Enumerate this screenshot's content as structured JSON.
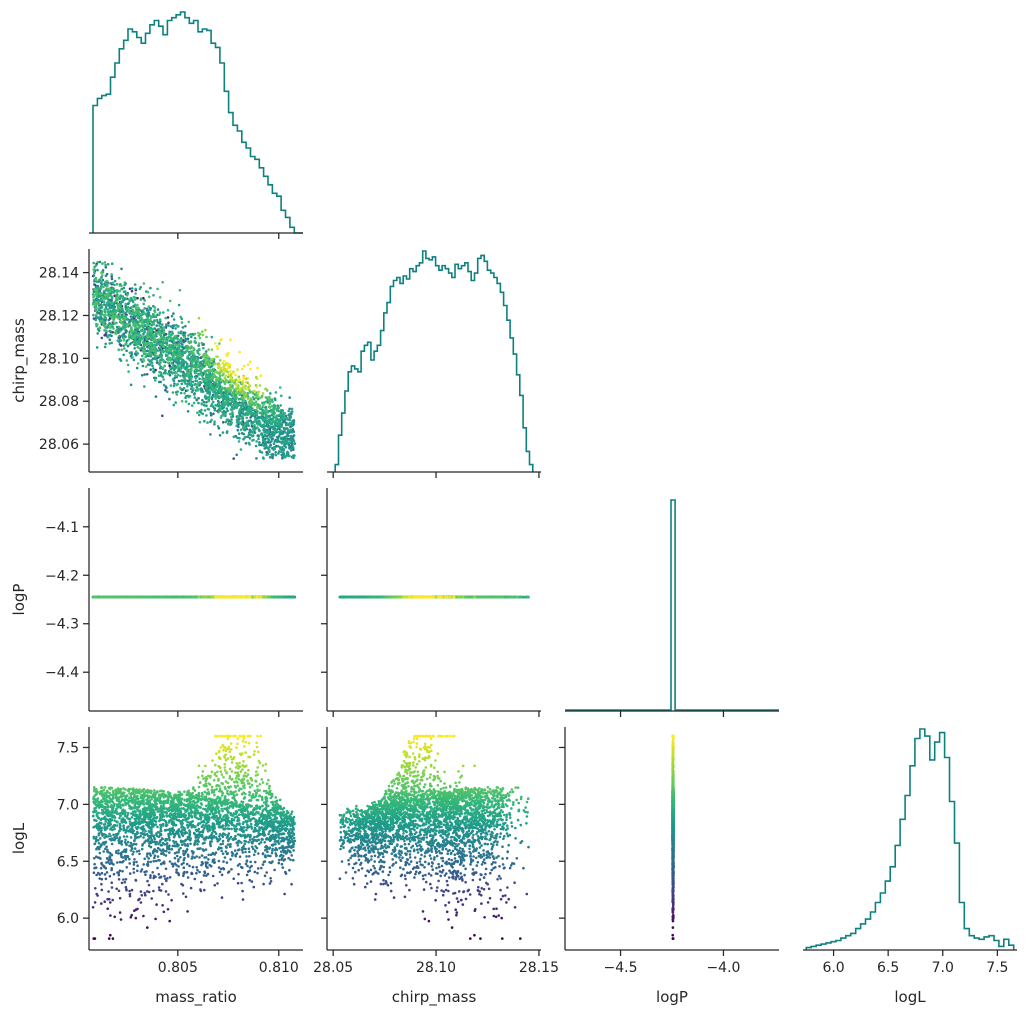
{
  "chart_data": {
    "type": "corner",
    "variables": [
      "mass_ratio",
      "chirp_mass",
      "logP",
      "logL"
    ],
    "axes": {
      "mass_ratio": {
        "label": "mass_ratio",
        "lim": [
          0.8006,
          0.8112
        ],
        "ticks": [
          0.805,
          0.81
        ],
        "tick_labels": [
          "0.805",
          "0.810"
        ]
      },
      "chirp_mass": {
        "label": "chirp_mass",
        "lim": [
          28.047,
          28.151
        ],
        "ticks": [
          28.05,
          28.1,
          28.15
        ],
        "tick_labels": [
          "28.05",
          "28.10",
          "28.15"
        ],
        "y_ticks": [
          28.06,
          28.08,
          28.1,
          28.12,
          28.14
        ],
        "y_tick_labels": [
          "28.06",
          "28.08",
          "28.10",
          "28.12",
          "28.14"
        ]
      },
      "logP": {
        "label": "logP",
        "lim": [
          -4.77,
          -3.73
        ],
        "ticks": [
          -4.5,
          -4.0
        ],
        "tick_labels": [
          "−4.5",
          "−4.0"
        ],
        "y_lim": [
          -4.48,
          -4.02
        ],
        "y_ticks": [
          -4.4,
          -4.3,
          -4.2,
          -4.1
        ],
        "y_tick_labels": [
          "−4.4",
          "−4.3",
          "−4.2",
          "−4.1"
        ]
      },
      "logL": {
        "label": "logL",
        "lim": [
          5.72,
          7.68
        ],
        "ticks": [
          6.0,
          6.5,
          7.0,
          7.5
        ],
        "tick_labels": [
          "6.0",
          "6.5",
          "7.0",
          "7.5"
        ],
        "y_ticks": [
          6.0,
          6.5,
          7.0,
          7.5
        ],
        "y_tick_labels": [
          "6.0",
          "6.5",
          "7.0",
          "7.5"
        ]
      }
    },
    "constant_logP": -4.245,
    "histograms": {
      "mass_ratio": {
        "edges": [
          0.8008,
          0.8112
        ],
        "counts": [
          90,
          95,
          97,
          98,
          110,
          120,
          130,
          136,
          144,
          142,
          138,
          134,
          141,
          147,
          150,
          146,
          140,
          150,
          152,
          154,
          156,
          152,
          148,
          150,
          142,
          144,
          143,
          134,
          131,
          120,
          100,
          85,
          76,
          72,
          64,
          60,
          54,
          52,
          46,
          40,
          34,
          28,
          26,
          16,
          11,
          4,
          0,
          0
        ]
      },
      "chirp_mass": {
        "edges": [
          28.051,
          28.147
        ],
        "counts": [
          5,
          25,
          40,
          55,
          68,
          72,
          70,
          68,
          82,
          86,
          88,
          76,
          82,
          86,
          96,
          108,
          115,
          126,
          130,
          132,
          128,
          133,
          131,
          138,
          136,
          140,
          142,
          150,
          145,
          144,
          146,
          140,
          137,
          140,
          138,
          135,
          132,
          141,
          138,
          140,
          142,
          136,
          130,
          135,
          145,
          147,
          143,
          137,
          135,
          132,
          128,
          122,
          113,
          103,
          91,
          80,
          66,
          52,
          30,
          14,
          5
        ]
      },
      "logP": {
        "bins": [
          -4.255,
          -4.235
        ],
        "peak_height": 1.0
      },
      "logL": {
        "edges": [
          5.75,
          7.65
        ],
        "counts": [
          2,
          3,
          4,
          5,
          6,
          7,
          8,
          10,
          12,
          14,
          18,
          22,
          26,
          32,
          40,
          48,
          58,
          70,
          88,
          110,
          130,
          155,
          178,
          186,
          180,
          160,
          175,
          183,
          162,
          125,
          90,
          40,
          18,
          12,
          10,
          9,
          11,
          12,
          8,
          3,
          9,
          4
        ]
      }
    },
    "colormap": "viridis",
    "scatter_pairs": [
      {
        "x": "mass_ratio",
        "y": "chirp_mass"
      },
      {
        "x": "mass_ratio",
        "y": "logP"
      },
      {
        "x": "chirp_mass",
        "y": "logP"
      },
      {
        "x": "mass_ratio",
        "y": "logL"
      },
      {
        "x": "chirp_mass",
        "y": "logL"
      },
      {
        "x": "logP",
        "y": "logL"
      }
    ],
    "hist_color": "#0f8080",
    "grid": false,
    "legend": "none"
  }
}
